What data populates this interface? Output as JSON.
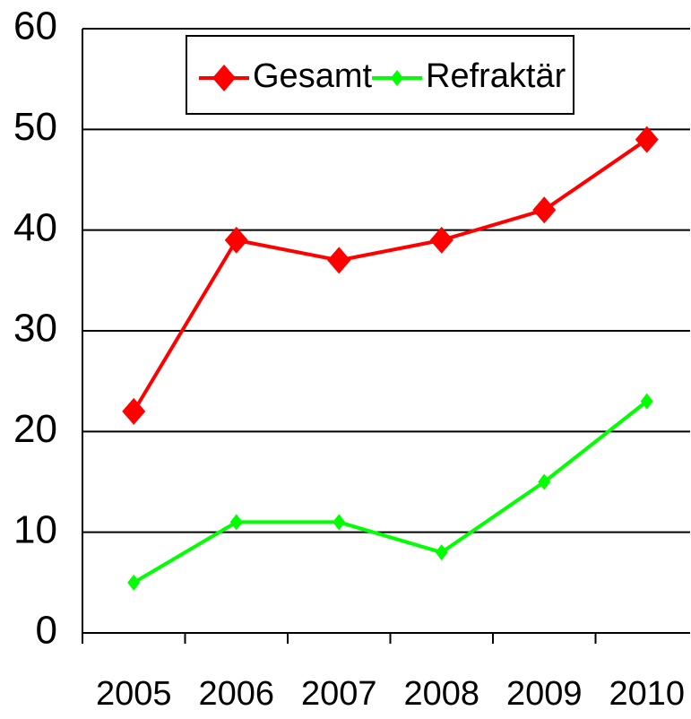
{
  "chart_data": {
    "type": "line",
    "categories": [
      "2005",
      "2006",
      "2007",
      "2008",
      "2009",
      "2010"
    ],
    "series": [
      {
        "name": "Gesamt",
        "color": "#ff0000",
        "values": [
          22,
          39,
          37,
          39,
          42,
          49
        ]
      },
      {
        "name": "Refraktär",
        "color": "#00ff00",
        "values": [
          5,
          11,
          11,
          8,
          15,
          23
        ]
      }
    ],
    "ylim": [
      0,
      60
    ],
    "yticks": [
      0,
      10,
      20,
      30,
      40,
      50,
      60
    ],
    "grid": true,
    "legend": "top"
  }
}
